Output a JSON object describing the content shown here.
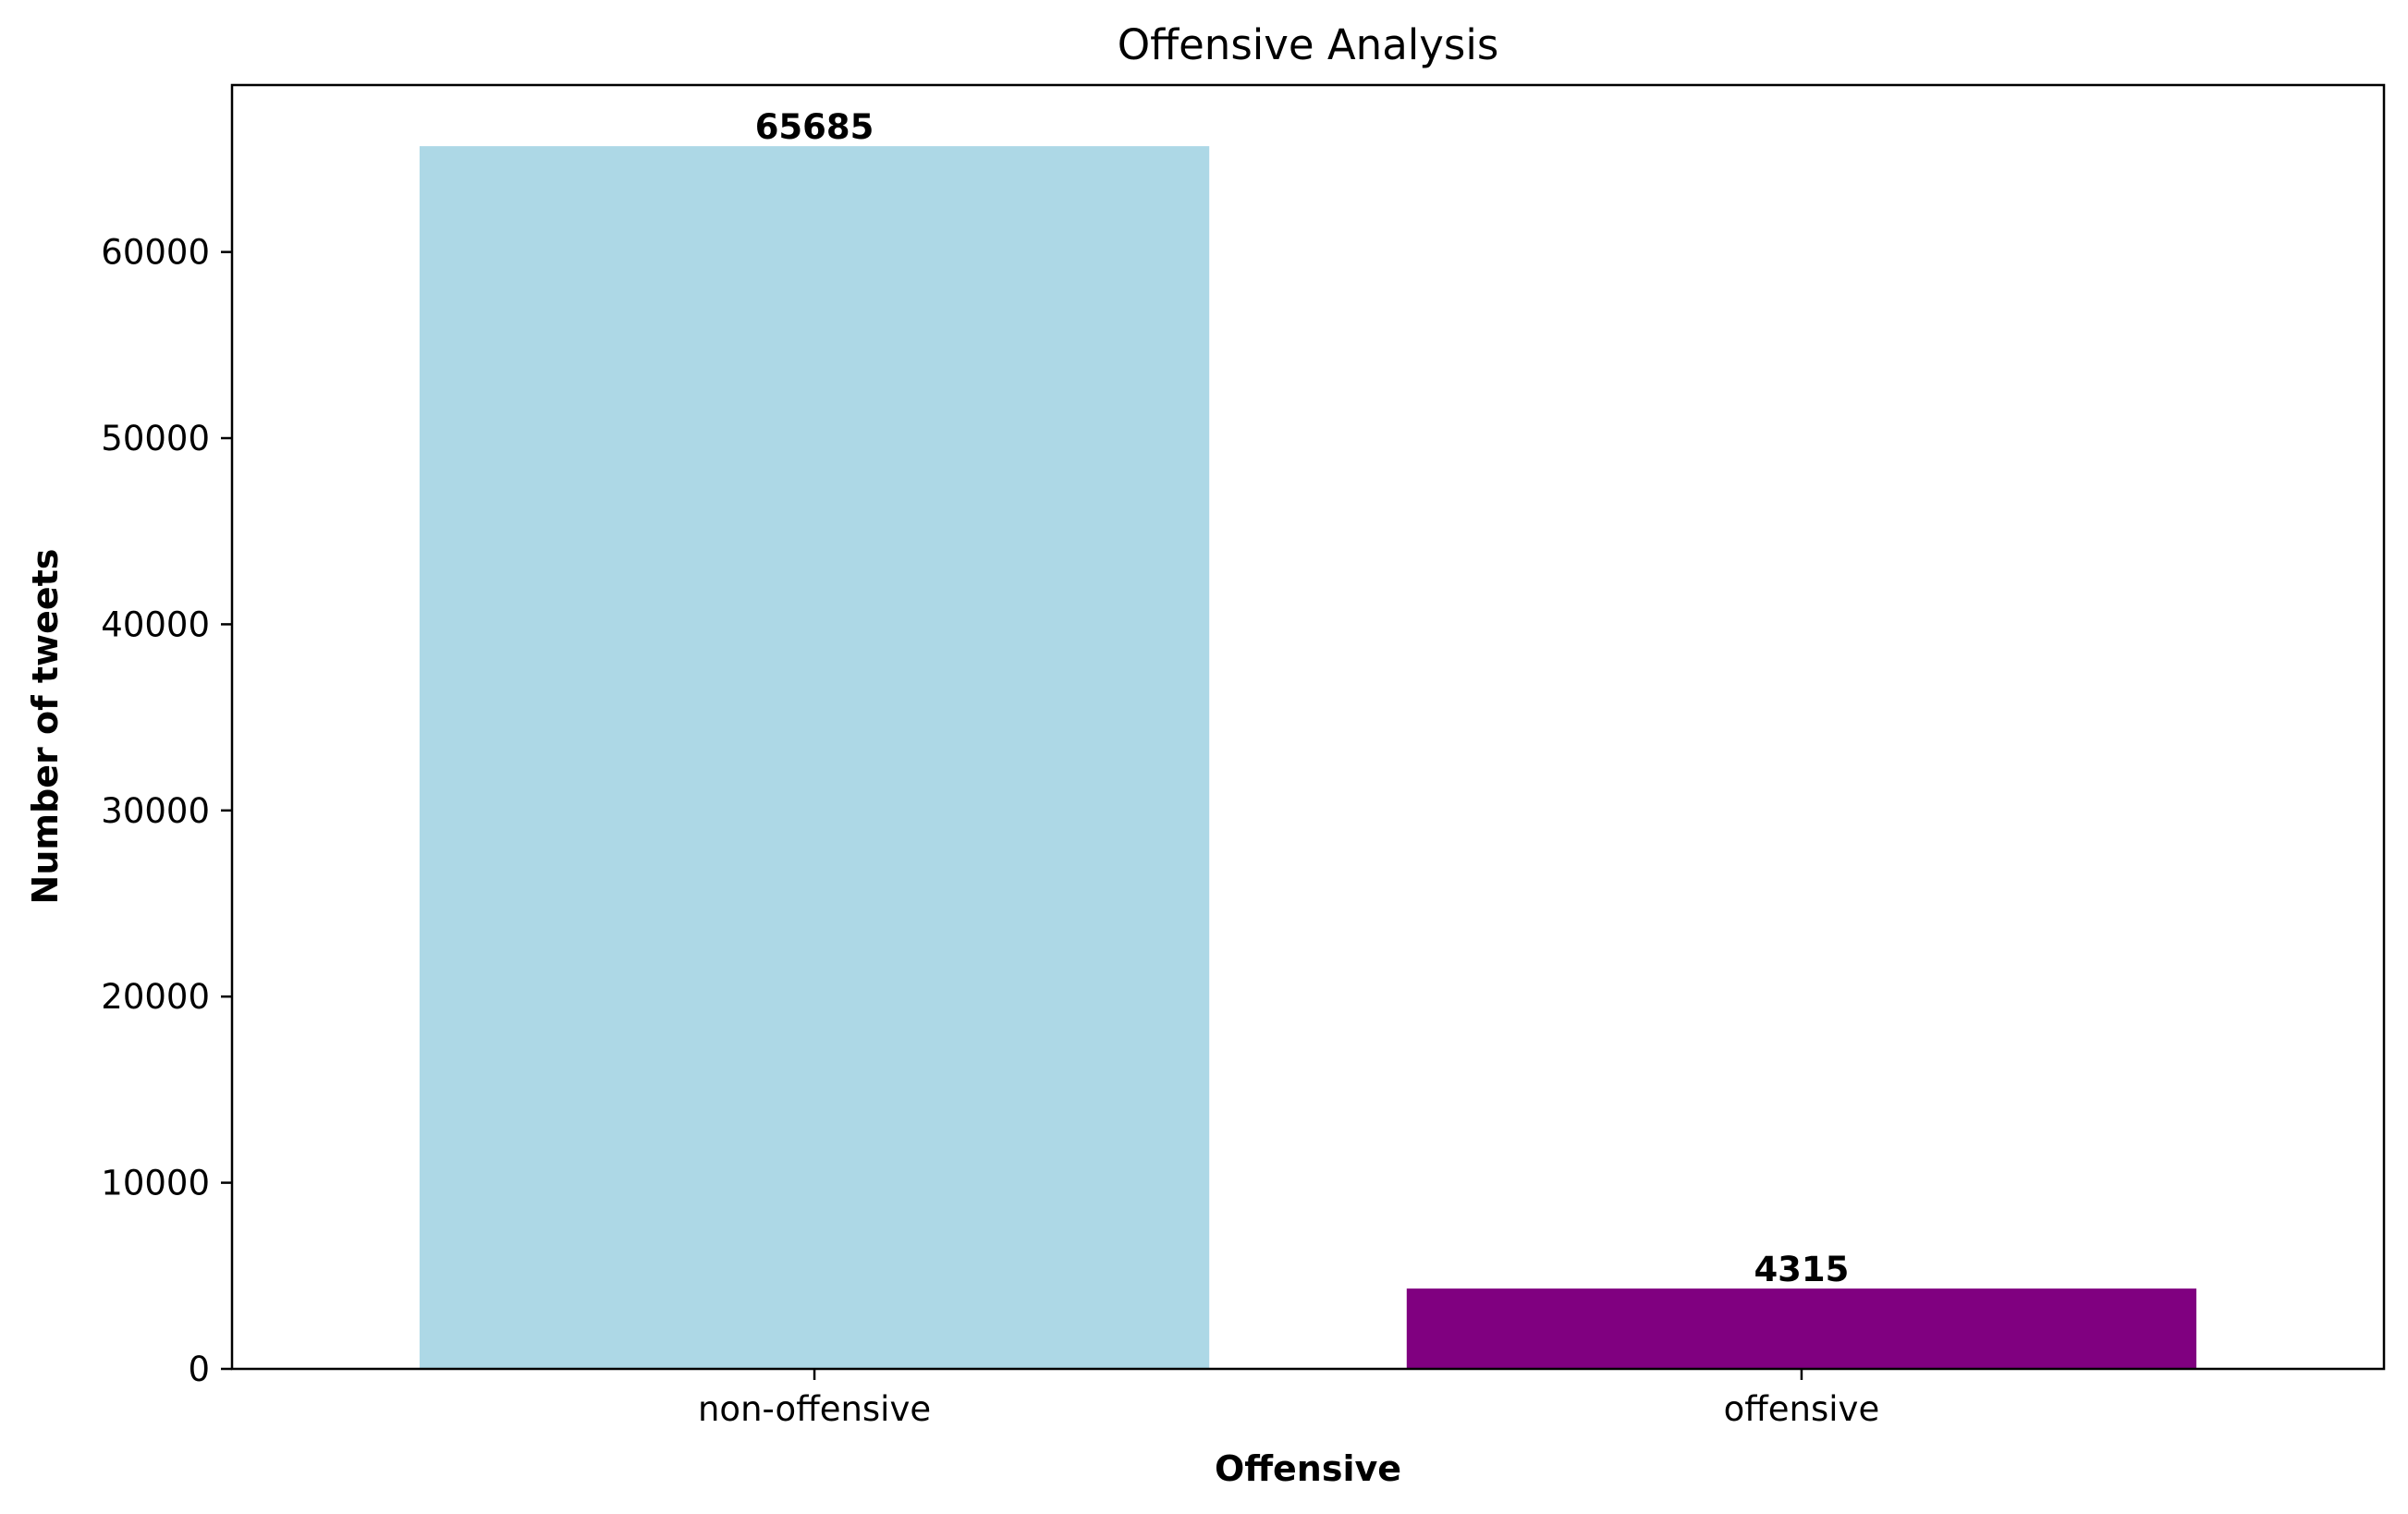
{
  "chart_data": {
    "type": "bar",
    "title": "Offensive Analysis",
    "xlabel": "Offensive",
    "ylabel": "Number of tweets",
    "categories": [
      "non-offensive",
      "offensive"
    ],
    "values": [
      65685,
      4315
    ],
    "data_labels": [
      "65685",
      "4315"
    ],
    "colors": [
      "#add8e6",
      "#800080"
    ],
    "ylim": [
      0,
      68969
    ],
    "yticks": [
      0,
      10000,
      20000,
      30000,
      40000,
      50000,
      60000
    ],
    "ytick_labels": [
      "0",
      "10000",
      "20000",
      "30000",
      "40000",
      "50000",
      "60000"
    ],
    "grid": false,
    "legend": "none"
  }
}
